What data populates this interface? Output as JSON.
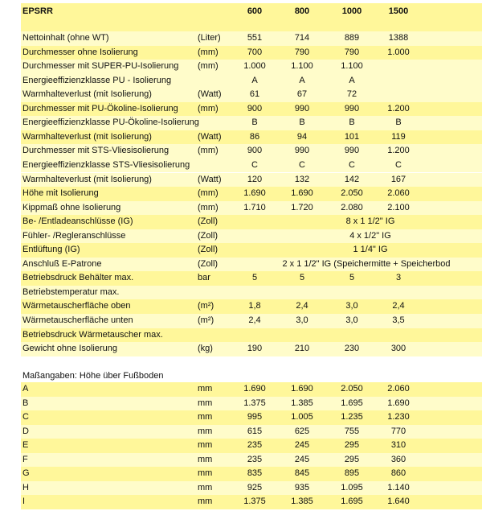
{
  "header": {
    "title": "EPSRR",
    "models": [
      "600",
      "800",
      "1000",
      "1500"
    ]
  },
  "specs": [
    {
      "label": "Nettoinhalt  (ohne WT)",
      "unit": "(Liter)",
      "values": [
        "551",
        "714",
        "889",
        "1388"
      ],
      "shade": "light"
    },
    {
      "label": "Durchmesser ohne Isolierung",
      "unit": "(mm)",
      "values": [
        "700",
        "790",
        "790",
        "1.000"
      ],
      "shade": "bright"
    },
    {
      "label": "Durchmesser mit SUPER-PU-Isolierung",
      "unit": "(mm)",
      "values": [
        "1.000",
        "1.100",
        "1.100",
        ""
      ],
      "shade": "light"
    },
    {
      "label": "Energieeffizienzklasse PU - Isolierung",
      "unit": "",
      "values": [
        "A",
        "A",
        "A",
        ""
      ],
      "shade": "light"
    },
    {
      "label": "Warmhalteverlust (mit Isolierung)",
      "unit": "(Watt)",
      "values": [
        "61",
        "67",
        "72",
        ""
      ],
      "shade": "light"
    },
    {
      "label": "Durchmesser mit PU-Ökoline-Isolierung",
      "unit": "(mm)",
      "values": [
        "900",
        "990",
        "990",
        "1.200"
      ],
      "shade": "bright"
    },
    {
      "label": "Energieeffizienzklasse PU-Ökoline-Isolierung",
      "unit": "",
      "values": [
        "B",
        "B",
        "B",
        "B"
      ],
      "shade": "light"
    },
    {
      "label": "Warmhalteverlust (mit Isolierung)",
      "unit": "(Watt)",
      "values": [
        "86",
        "94",
        "101",
        "119"
      ],
      "shade": "bright"
    },
    {
      "label": "Durchmesser mit STS-Vliesisolierung",
      "unit": "(mm)",
      "values": [
        "900",
        "990",
        "990",
        "1.200"
      ],
      "shade": "light"
    },
    {
      "label": "Energieeffizienzklasse STS-Vliesisolierung",
      "unit": "",
      "values": [
        "C",
        "C",
        "C",
        "C"
      ],
      "shade": "light"
    },
    {
      "label": "Warmhalteverlust (mit Isolierung)",
      "unit": "(Watt)",
      "values": [
        "120",
        "132",
        "142",
        "167"
      ],
      "shade": "light"
    },
    {
      "label": "Höhe mit Isolierung",
      "unit": "(mm)",
      "values": [
        "1.690",
        "1.690",
        "2.050",
        "2.060"
      ],
      "shade": "bright"
    },
    {
      "label": "Kippmaß ohne Isolierung",
      "unit": "(mm)",
      "values": [
        "1.710",
        "1.720",
        "2.080",
        "2.100"
      ],
      "shade": "light"
    },
    {
      "label": "Be- /Entladeanschlüsse (IG)",
      "unit": "(Zoll)",
      "span": "8 x 1 1/2\" IG",
      "shade": "bright"
    },
    {
      "label": "Fühler- /Regleranschlüsse",
      "unit": "(Zoll)",
      "span": "4 x 1/2\" IG",
      "shade": "light"
    },
    {
      "label": "Entlüftung (IG)",
      "unit": "(Zoll)",
      "span": "1 1/4\" IG",
      "shade": "bright"
    },
    {
      "label": "Anschluß E-Patrone",
      "unit": "(Zoll)",
      "span": "2 x 1 1/2\" IG (Speichermitte + Speicherbod",
      "shade": "light",
      "clip": true
    },
    {
      "label": "Betriebsdruck Behälter max.",
      "unit": "bar",
      "values": [
        "5",
        "5",
        "5",
        "3"
      ],
      "shade": "bright"
    },
    {
      "label": "Betriebstemperatur max.",
      "unit": "",
      "values": [
        "",
        "",
        "",
        ""
      ],
      "shade": "light"
    },
    {
      "label": "Wärmetauscherfläche oben",
      "unit": "(m²)",
      "values": [
        "1,8",
        "2,4",
        "3,0",
        "2,4"
      ],
      "shade": "bright"
    },
    {
      "label": "Wärmetauscherfläche unten",
      "unit": "(m²)",
      "values": [
        "2,4",
        "3,0",
        "3,0",
        "3,5"
      ],
      "shade": "light"
    },
    {
      "label": "Betriebsdruck Wärmetauscher max.",
      "unit": "",
      "values": [
        "",
        "",
        "",
        ""
      ],
      "shade": "bright"
    },
    {
      "label": "Gewicht ohne Isolierung",
      "unit": "(kg)",
      "values": [
        "190",
        "210",
        "230",
        "300"
      ],
      "shade": "light"
    }
  ],
  "dimensions": {
    "title": "Maßangaben: Höhe über Fußboden",
    "rows": [
      {
        "label": "A",
        "unit": "mm",
        "values": [
          "1.690",
          "1.690",
          "2.050",
          "2.060"
        ],
        "shade": "bright"
      },
      {
        "label": "B",
        "unit": "mm",
        "values": [
          "1.375",
          "1.385",
          "1.695",
          "1.690"
        ],
        "shade": "light"
      },
      {
        "label": "C",
        "unit": "mm",
        "values": [
          "995",
          "1.005",
          "1.235",
          "1.230"
        ],
        "shade": "bright"
      },
      {
        "label": "D",
        "unit": "mm",
        "values": [
          "615",
          "625",
          "755",
          "770"
        ],
        "shade": "light"
      },
      {
        "label": "E",
        "unit": "mm",
        "values": [
          "235",
          "245",
          "295",
          "310"
        ],
        "shade": "bright"
      },
      {
        "label": "F",
        "unit": "mm",
        "values": [
          "235",
          "245",
          "295",
          "360"
        ],
        "shade": "light"
      },
      {
        "label": "G",
        "unit": "mm",
        "values": [
          "835",
          "845",
          "895",
          "860"
        ],
        "shade": "bright"
      },
      {
        "label": "H",
        "unit": "mm",
        "values": [
          "925",
          "935",
          "1.095",
          "1.140"
        ],
        "shade": "light"
      },
      {
        "label": "I",
        "unit": "mm",
        "values": [
          "1.375",
          "1.385",
          "1.695",
          "1.640"
        ],
        "shade": "bright"
      }
    ]
  },
  "colors": {
    "bright": "#fff79a",
    "light": "#fffcca"
  }
}
